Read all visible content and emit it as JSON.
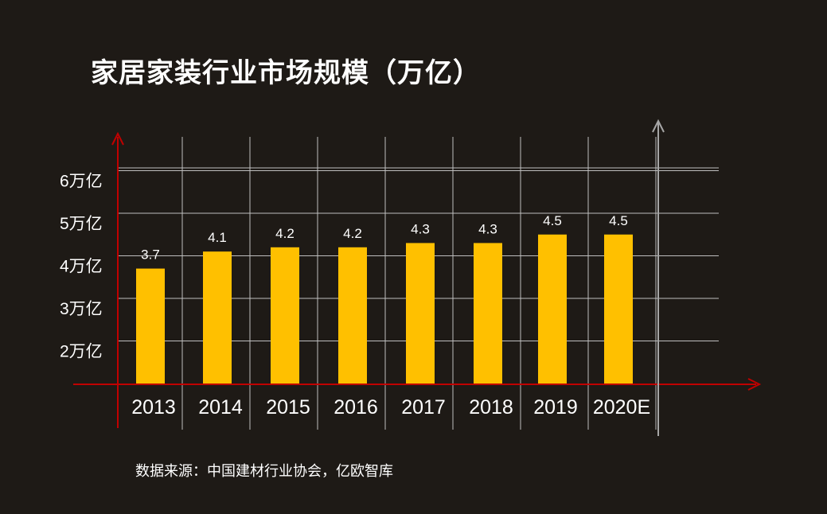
{
  "title": "家居家装行业市场规模（万亿）",
  "source": "数据来源：中国建材行业协会，亿欧智库",
  "colors": {
    "background": "#1e1a16",
    "bar": "#ffc000",
    "axis": "#c00000",
    "grid": "#bfbfbf",
    "right_axis": "#a6a6a6",
    "text": "#ffffff"
  },
  "chart_data": {
    "type": "bar",
    "title": "家居家装行业市场规模（万亿）",
    "categories": [
      "2013",
      "2014",
      "2015",
      "2016",
      "2017",
      "2018",
      "2019",
      "2020E"
    ],
    "values": [
      3.7,
      4.1,
      4.2,
      4.2,
      4.3,
      4.3,
      4.5,
      4.5
    ],
    "value_labels": [
      "3.7",
      "4.1",
      "4.2",
      "4.2",
      "4.3",
      "4.3",
      "4.5",
      "4.5"
    ],
    "y_ticks": [
      {
        "value": 2,
        "label": "2万亿"
      },
      {
        "value": 3,
        "label": "3万亿"
      },
      {
        "value": 4,
        "label": "4万亿"
      },
      {
        "value": 5,
        "label": "5万亿"
      },
      {
        "value": 6,
        "label": "6万亿"
      }
    ],
    "ylim": [
      1,
      6
    ],
    "grid": true,
    "xlabel": "",
    "ylabel": ""
  }
}
